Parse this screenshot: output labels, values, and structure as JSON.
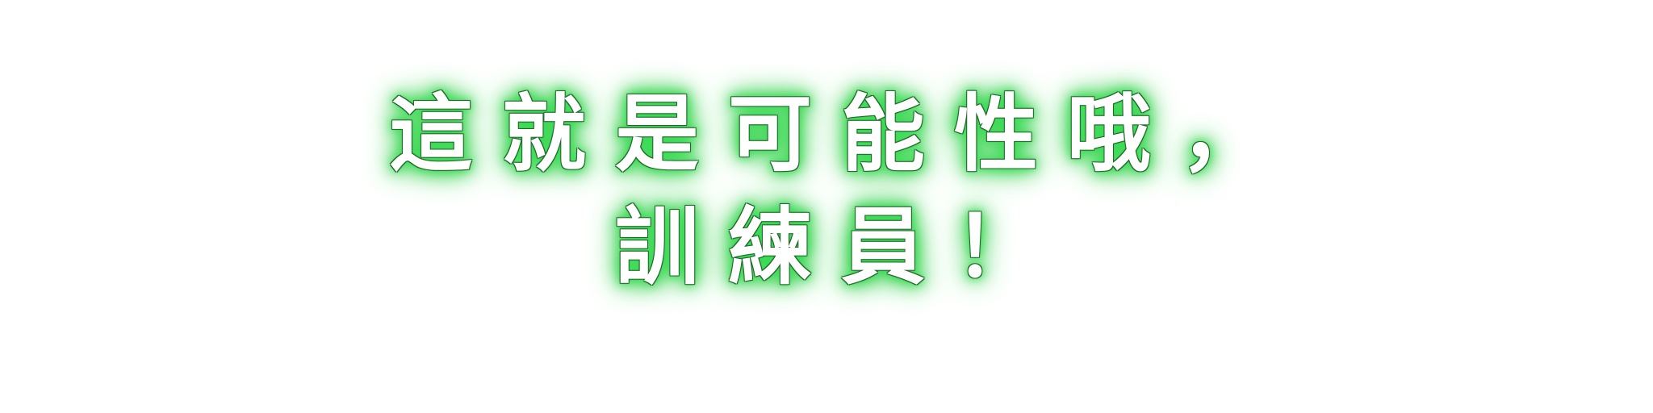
{
  "caption": {
    "line1": "這就是可能性哦，",
    "line2": "訓練員！"
  },
  "colors": {
    "text": "#ffffff",
    "glow": "#36d84f",
    "outline": "#1f6b2a",
    "background": "#ffffff"
  }
}
